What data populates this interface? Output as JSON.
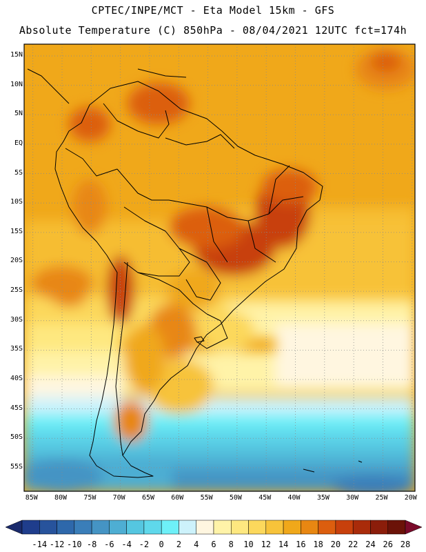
{
  "header": {
    "line1": "CPTEC/INPE/MCT -  Eta Model 15km - GFS",
    "line2": "Absolute Temperature (C) 850hPa - 08/04/2021 12UTC fct=174h"
  },
  "map": {
    "region": "South America",
    "lat_labels": [
      "15N",
      "10N",
      "5N",
      "EQ",
      "5S",
      "10S",
      "15S",
      "20S",
      "25S",
      "30S",
      "35S",
      "40S",
      "45S",
      "50S",
      "55S"
    ],
    "lon_labels": [
      "85W",
      "80W",
      "75W",
      "70W",
      "65W",
      "60W",
      "55W",
      "50W",
      "45W",
      "40W",
      "35W",
      "30W",
      "25W",
      "20W"
    ],
    "lat_values": [
      15,
      10,
      5,
      0,
      -5,
      -10,
      -15,
      -20,
      -25,
      -30,
      -35,
      -40,
      -45,
      -50,
      -55
    ],
    "lon_values": [
      -85,
      -80,
      -75,
      -70,
      -65,
      -60,
      -55,
      -50,
      -45,
      -40,
      -35,
      -30,
      -25,
      -20
    ]
  },
  "colorbar": {
    "labels": [
      "-14",
      "-12",
      "-10",
      "-8",
      "-6",
      "-4",
      "-2",
      "0",
      "2",
      "4",
      "6",
      "8",
      "10",
      "12",
      "14",
      "16",
      "18",
      "20",
      "22",
      "24",
      "26",
      "28"
    ],
    "colors": [
      "#1f3d8c",
      "#27539c",
      "#2e68ab",
      "#3a7eb9",
      "#4594c4",
      "#4eaed3",
      "#55c6e0",
      "#5fd8eb",
      "#6ef0f8",
      "#cdf2fb",
      "#fff6e0",
      "#fff3a8",
      "#fee880",
      "#fcd85c",
      "#f7c33a",
      "#f0a81a",
      "#e88712",
      "#dc5e0e",
      "#c8400c",
      "#a92b0a",
      "#8b1d0a",
      "#6b1208"
    ]
  }
}
